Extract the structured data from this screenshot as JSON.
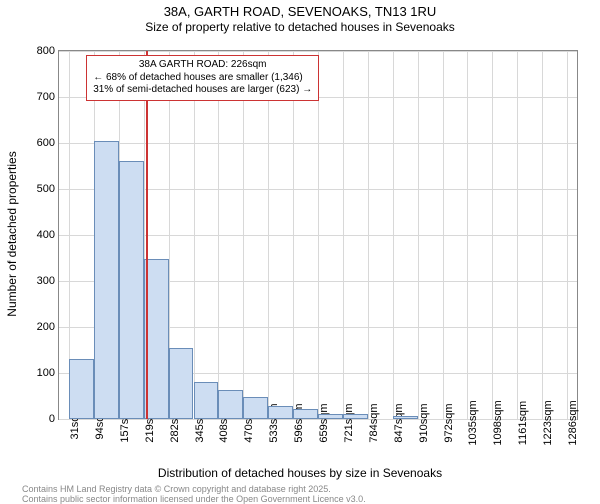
{
  "title_main": "38A, GARTH ROAD, SEVENOAKS, TN13 1RU",
  "title_sub": "Size of property relative to detached houses in Sevenoaks",
  "chart": {
    "type": "histogram",
    "y_label": "Number of detached properties",
    "x_label": "Distribution of detached houses by size in Sevenoaks",
    "ylim": [
      0,
      800
    ],
    "y_ticks": [
      0,
      100,
      200,
      300,
      400,
      500,
      600,
      700,
      800
    ],
    "x_ticks": [
      "31sqm",
      "94sqm",
      "157sqm",
      "219sqm",
      "282sqm",
      "345sqm",
      "408sqm",
      "470sqm",
      "533sqm",
      "596sqm",
      "659sqm",
      "721sqm",
      "784sqm",
      "847sqm",
      "910sqm",
      "972sqm",
      "1035sqm",
      "1098sqm",
      "1161sqm",
      "1223sqm",
      "1286sqm"
    ],
    "bar_fill": "#cdddf2",
    "bar_stroke": "#6a8db8",
    "grid_color": "#d8d8d8",
    "background": "#ffffff",
    "bars": [
      130,
      605,
      560,
      348,
      154,
      80,
      62,
      48,
      28,
      22,
      10,
      10,
      0,
      6,
      0,
      0,
      0,
      0,
      0,
      0,
      0
    ],
    "vline_x_index": 3.1,
    "vline_color": "#cc3333",
    "annotation": {
      "line1": "38A GARTH ROAD: 226sqm",
      "line2": "← 68% of detached houses are smaller (1,346)",
      "line3": "31% of semi-detached houses are larger (623) →",
      "border_color": "#cc3333"
    }
  },
  "footer1": "Contains HM Land Registry data © Crown copyright and database right 2025.",
  "footer2": "Contains public sector information licensed under the Open Government Licence v3.0."
}
